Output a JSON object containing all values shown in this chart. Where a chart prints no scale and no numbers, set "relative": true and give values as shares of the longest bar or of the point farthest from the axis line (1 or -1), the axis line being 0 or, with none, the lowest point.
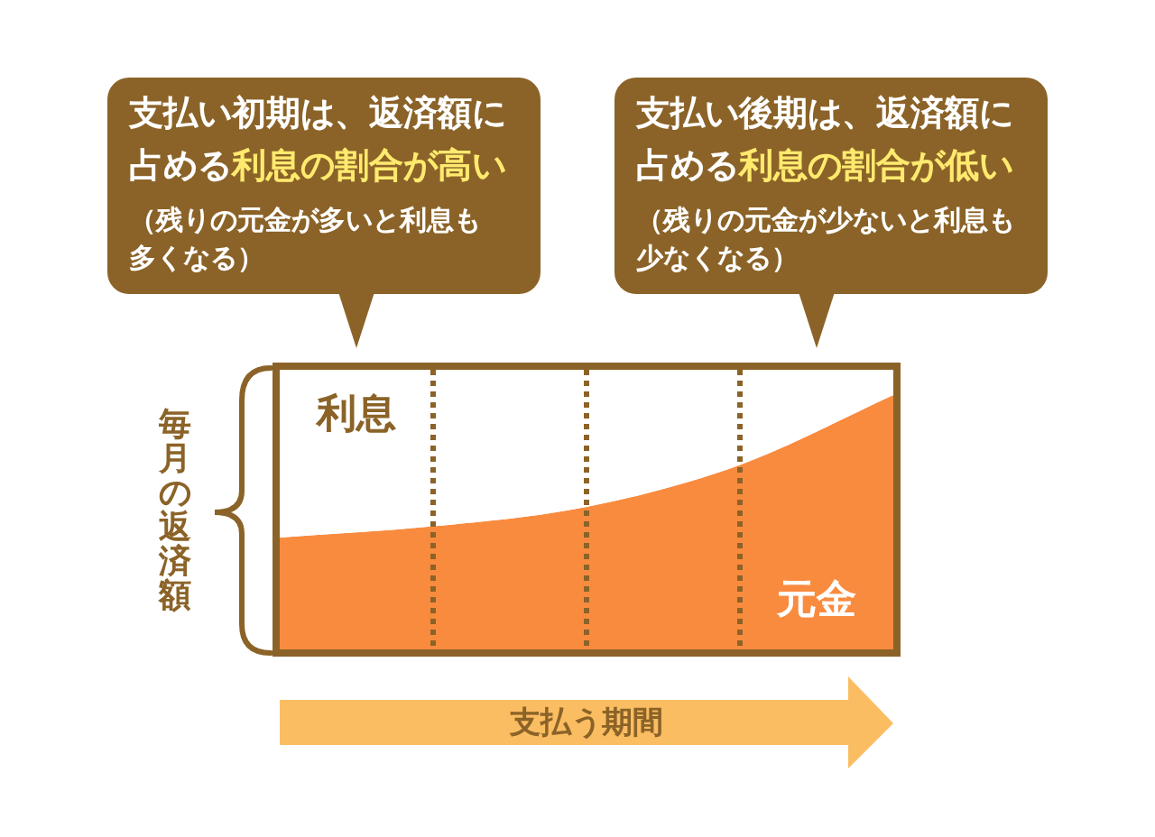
{
  "chart_data": {
    "type": "area",
    "stacked": true,
    "relative": true,
    "categories": [
      null,
      null,
      null,
      null,
      null
    ],
    "series": [
      {
        "name": "元金",
        "color": "#f98b3f",
        "values": [
          0.4,
          0.44,
          0.51,
          0.66,
          0.91
        ]
      },
      {
        "name": "利息",
        "color": "#ffffff",
        "values": [
          0.6,
          0.56,
          0.49,
          0.34,
          0.09
        ]
      }
    ],
    "xlabel": "支払う期間",
    "ylabel": "毎月の返済額",
    "grid": "x",
    "annotations": [
      "支払い初期は、返済額に占める",
      "利息の割合が高い",
      "（残りの元金が多いと利息も多くなる）",
      "支払い後期は、返済額に占める",
      "利息の割合が低い",
      "（残りの元金が少ないと利息も少なくなる）"
    ]
  }
}
